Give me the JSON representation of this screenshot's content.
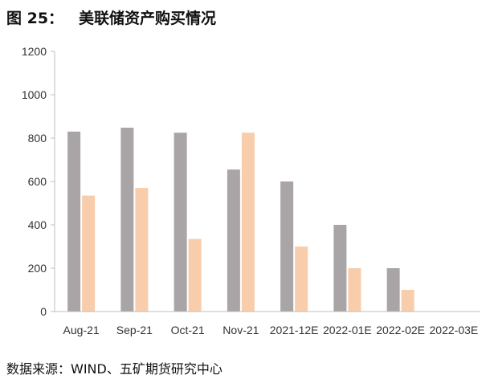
{
  "figure": {
    "number": "图 25：",
    "title": "美联储资产购买情况",
    "source": "数据来源：WIND、五矿期货研究中心"
  },
  "chart_data": {
    "type": "bar",
    "title": "美联储资产购买情况",
    "xlabel": "",
    "ylabel": "",
    "categories": [
      "Aug-21",
      "Sep-21",
      "Oct-21",
      "Nov-21",
      "2021-12E",
      "2022-01E",
      "2022-02E",
      "2022-03E"
    ],
    "series": [
      {
        "values": [
          830,
          848,
          825,
          655,
          600,
          400,
          200,
          0
        ],
        "color": "#a9a5a6"
      },
      {
        "values": [
          535,
          570,
          335,
          825,
          300,
          200,
          100,
          0
        ],
        "color": "#f8cdab"
      }
    ],
    "ylim": [
      0,
      1200
    ],
    "yticks": [
      0,
      200,
      400,
      600,
      800,
      1000,
      1200
    ],
    "grid": false,
    "legend": "none"
  }
}
